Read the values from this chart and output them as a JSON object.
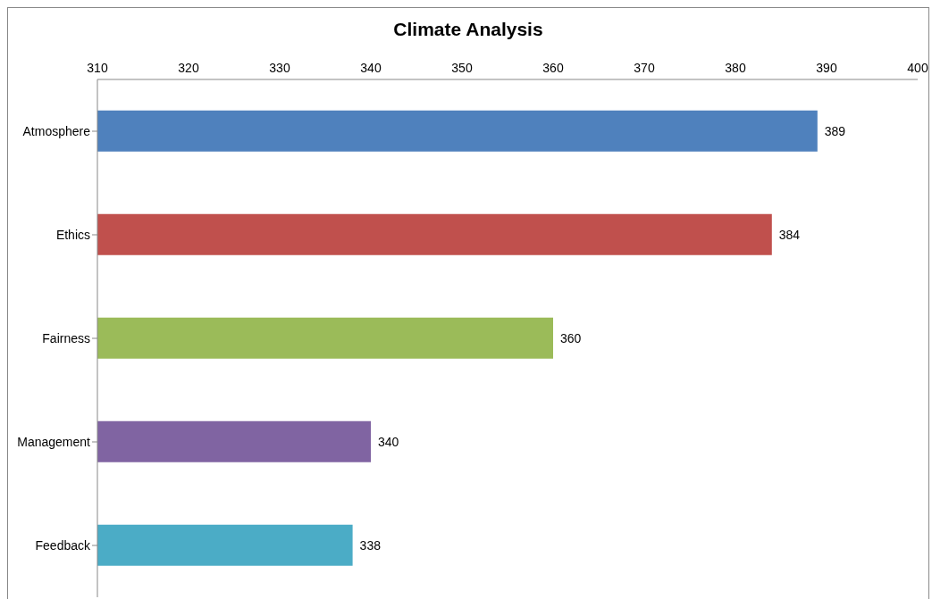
{
  "chart_data": {
    "type": "bar",
    "orientation": "horizontal",
    "title": "Climate Analysis",
    "categories": [
      "Atmosphere",
      "Ethics",
      "Fairness",
      "Management",
      "Feedback"
    ],
    "values": [
      389,
      384,
      360,
      340,
      338
    ],
    "colors": [
      "#4f81bd",
      "#c0504d",
      "#9bbb59",
      "#8064a2",
      "#4bacc6"
    ],
    "xlim": [
      310,
      400
    ],
    "xticks": [
      310,
      320,
      330,
      340,
      350,
      360,
      370,
      380,
      390,
      400
    ],
    "data_labels": true
  }
}
